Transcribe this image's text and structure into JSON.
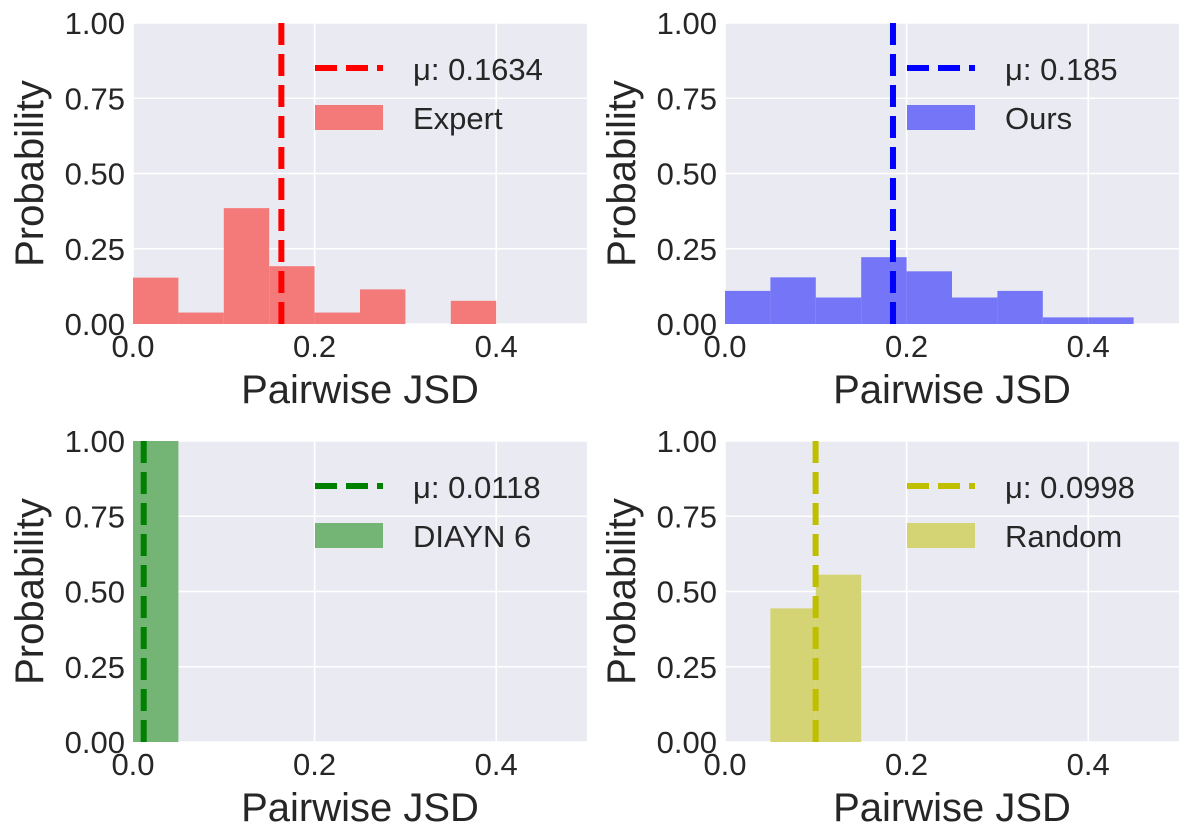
{
  "chart_data": [
    {
      "type": "bar",
      "xlabel": "Pairwise JSD",
      "ylabel": "Probability",
      "xlim": [
        0.0,
        0.5
      ],
      "ylim": [
        0.0,
        1.0
      ],
      "xticks": [
        "0.0",
        "0.2",
        "0.4"
      ],
      "yticks": [
        "0.00",
        "0.25",
        "0.50",
        "0.75",
        "1.00"
      ],
      "grid": true,
      "legend_position": "top-right",
      "bin_edges": [
        0.0,
        0.05,
        0.1,
        0.15,
        0.2,
        0.25,
        0.3,
        0.35,
        0.4,
        0.45,
        0.5
      ],
      "values": [
        0.154,
        0.038,
        0.385,
        0.192,
        0.038,
        0.115,
        0.0,
        0.077,
        0.0,
        0.0
      ],
      "series_name": "Expert",
      "color": "#f47a7a",
      "mean_value": 0.1634,
      "mean_label": "μ: 0.1634",
      "mean_color": "#ff0000"
    },
    {
      "type": "bar",
      "xlabel": "Pairwise JSD",
      "ylabel": "Probability",
      "xlim": [
        0.0,
        0.5
      ],
      "ylim": [
        0.0,
        1.0
      ],
      "xticks": [
        "0.0",
        "0.2",
        "0.4"
      ],
      "yticks": [
        "0.00",
        "0.25",
        "0.50",
        "0.75",
        "1.00"
      ],
      "grid": true,
      "legend_position": "top-right",
      "bin_edges": [
        0.0,
        0.05,
        0.1,
        0.15,
        0.2,
        0.25,
        0.3,
        0.35,
        0.4,
        0.45,
        0.5
      ],
      "values": [
        0.11,
        0.155,
        0.088,
        0.222,
        0.175,
        0.088,
        0.11,
        0.022,
        0.022,
        0.0
      ],
      "series_name": "Ours",
      "color": "#7575f7",
      "mean_value": 0.185,
      "mean_label": "μ: 0.185",
      "mean_color": "#0000ff"
    },
    {
      "type": "bar",
      "xlabel": "Pairwise JSD",
      "ylabel": "Probability",
      "xlim": [
        0.0,
        0.5
      ],
      "ylim": [
        0.0,
        1.0
      ],
      "xticks": [
        "0.0",
        "0.2",
        "0.4"
      ],
      "yticks": [
        "0.00",
        "0.25",
        "0.50",
        "0.75",
        "1.00"
      ],
      "grid": true,
      "legend_position": "top-right",
      "bin_edges": [
        0.0,
        0.05,
        0.1,
        0.15,
        0.2,
        0.25,
        0.3,
        0.35,
        0.4,
        0.45,
        0.5
      ],
      "values": [
        1.0,
        0.0,
        0.0,
        0.0,
        0.0,
        0.0,
        0.0,
        0.0,
        0.0,
        0.0
      ],
      "series_name": "DIAYN 6",
      "color": "#74b474",
      "mean_value": 0.0118,
      "mean_label": "μ: 0.0118",
      "mean_color": "#008000"
    },
    {
      "type": "bar",
      "xlabel": "Pairwise JSD",
      "ylabel": "Probability",
      "xlim": [
        0.0,
        0.5
      ],
      "ylim": [
        0.0,
        1.0
      ],
      "xticks": [
        "0.0",
        "0.2",
        "0.4"
      ],
      "yticks": [
        "0.00",
        "0.25",
        "0.50",
        "0.75",
        "1.00"
      ],
      "grid": true,
      "legend_position": "top-right",
      "bin_edges": [
        0.0,
        0.05,
        0.1,
        0.15,
        0.2,
        0.25,
        0.3,
        0.35,
        0.4,
        0.45,
        0.5
      ],
      "values": [
        0.0,
        0.444,
        0.556,
        0.0,
        0.0,
        0.0,
        0.0,
        0.0,
        0.0,
        0.0
      ],
      "series_name": "Random",
      "color": "#d4d474",
      "mean_value": 0.0998,
      "mean_label": "μ: 0.0998",
      "mean_color": "#bfbf00"
    }
  ]
}
